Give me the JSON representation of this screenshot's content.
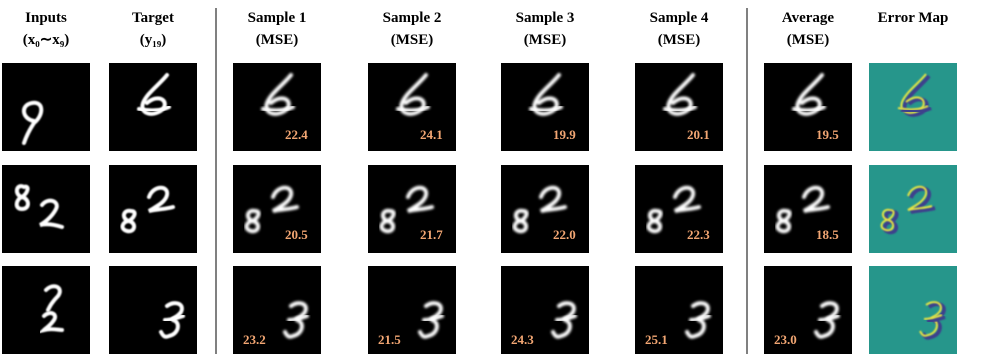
{
  "columns": [
    {
      "title": "Inputs",
      "subtitle": "(x₀∼x₉)"
    },
    {
      "title": "Target",
      "subtitle": "(y₁₉)"
    },
    {
      "title": "Sample 1",
      "subtitle": "(MSE)"
    },
    {
      "title": "Sample 2",
      "subtitle": "(MSE)"
    },
    {
      "title": "Sample 3",
      "subtitle": "(MSE)"
    },
    {
      "title": "Sample 4",
      "subtitle": "(MSE)"
    },
    {
      "title": "Average",
      "subtitle": "(MSE)"
    },
    {
      "title": "Error Map"
    }
  ],
  "rows": [
    {
      "mse": [
        "22.4",
        "24.1",
        "19.9",
        "20.1",
        "19.5"
      ]
    },
    {
      "mse": [
        "20.5",
        "21.7",
        "22.0",
        "22.3",
        "18.5"
      ]
    },
    {
      "mse": [
        "23.2",
        "21.5",
        "24.3",
        "25.1",
        "23.0"
      ]
    }
  ]
}
